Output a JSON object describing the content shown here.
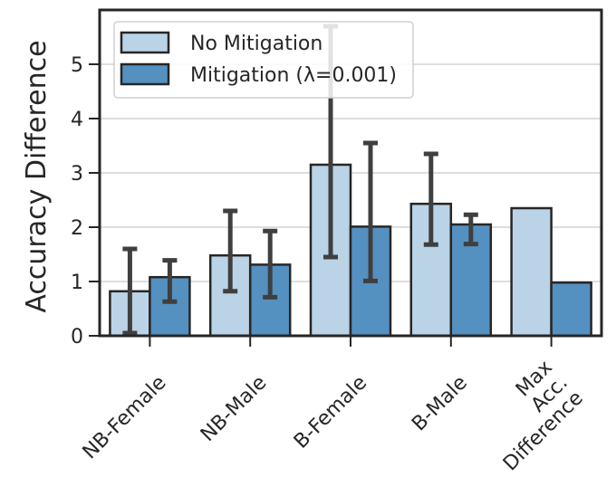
{
  "chart_data": {
    "type": "bar",
    "ylabel": "Accuracy Difference",
    "ylim": [
      0,
      6
    ],
    "yticks": [
      0,
      1,
      2,
      3,
      4,
      5
    ],
    "grid": true,
    "legend_position": "top-left",
    "categories": [
      [
        "NB-Female"
      ],
      [
        "NB-Male"
      ],
      [
        "B-Female"
      ],
      [
        "B-Male"
      ],
      [
        "Max",
        "Acc.",
        "Difference"
      ]
    ],
    "series": [
      {
        "name": "No Mitigation",
        "color": "#bad3e6",
        "values": [
          0.82,
          1.48,
          3.15,
          2.43,
          2.35
        ],
        "error_low": [
          0.05,
          0.82,
          1.45,
          1.68,
          null
        ],
        "error_high": [
          1.6,
          2.3,
          5.7,
          3.35,
          null
        ]
      },
      {
        "name": "Mitigation (λ=0.001)",
        "color": "#5490c0",
        "values": [
          1.08,
          1.31,
          2.01,
          2.05,
          0.98
        ],
        "error_low": [
          0.63,
          0.71,
          1.01,
          1.69,
          null
        ],
        "error_high": [
          1.39,
          1.93,
          3.55,
          2.23,
          null
        ]
      }
    ]
  }
}
